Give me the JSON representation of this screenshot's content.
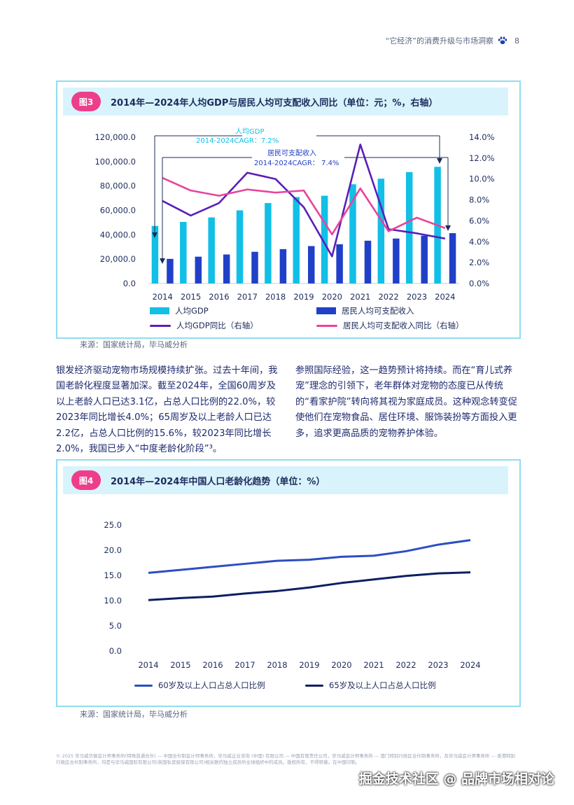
{
  "header": {
    "title": "“它经济”的消费升级与市场洞察",
    "page": "8",
    "colors": {
      "accent": "#1e3fb0",
      "pink": "#ee3e8a",
      "cyan": "#12bfe6"
    }
  },
  "figure3": {
    "tag": "图3",
    "title": "2014年—2024年人均GDP与居民人均可支配收入同比（单位：元；%，右轴）",
    "source": "来源：国家统计局，毕马威分析",
    "legend": {
      "gdp": "人均GDP",
      "income": "居民人均可支配收入",
      "gdp_yoy": "人均GDP同比（右轴）",
      "income_yoy": "居民人均可支配收入同比（右轴）"
    },
    "annotation_gdp": [
      "人均GDP",
      "2014-2024CAGR：7.2%"
    ],
    "annotation_income": [
      "居民可支配收入",
      "2014-2024CAGR：  7.4%"
    ]
  },
  "body": {
    "left": "银发经济驱动宠物市场规模持续扩张。过去十年间，我国老龄化程度显著加深。截至2024年，全国60周岁及以上老龄人口已达3.1亿，占总人口比例的22.0%，较2023年同比增长4.0%；65周岁及以上老龄人口已达2.2亿，占总人口比例的15.6%，较2023年同比增长2.0%，我国已步入“中度老龄化阶段”³。",
    "right": "参照国际经验，这一趋势预计将持续。而在“育儿式养宠”理念的引领下，老年群体对宠物的态度已从传统的“看家护院”转向将其视为家庭成员。这种观念转变促使他们在宠物食品、居住环境、服饰装扮等方面投入更多，追求更高品质的宠物养护体验。"
  },
  "figure4": {
    "tag": "图4",
    "title": "2014年—2024年中国人口老龄化趋势（单位：%）",
    "source": "来源：国家统计局，毕马威分析",
    "legend": {
      "s60": "60岁及以上人口占总人口比例",
      "s65": "65岁及以上人口占总人口比例"
    }
  },
  "chart_data": [
    {
      "type": "bar",
      "title": "2014年—2024年人均GDP与居民人均可支配收入同比（单位：元；%，右轴）",
      "categories": [
        "2014",
        "2015",
        "2016",
        "2017",
        "2018",
        "2019",
        "2020",
        "2021",
        "2022",
        "2023",
        "2024"
      ],
      "ylim": [
        0,
        120000
      ],
      "yticks": [
        "0.0",
        "20,000.0",
        "40,000.0",
        "60,000.0",
        "80,000.0",
        "100,000.0",
        "120,000.0"
      ],
      "y2lim": [
        0,
        14
      ],
      "y2ticks": [
        "0.0%",
        "2.0%",
        "4.0%",
        "6.0%",
        "8.0%",
        "10.0%",
        "12.0%",
        "14.0%"
      ],
      "series": [
        {
          "name": "人均GDP",
          "kind": "bar",
          "axis": "left",
          "color": "#12bfe6",
          "values": [
            47200,
            50500,
            54200,
            60000,
            66000,
            70900,
            72000,
            81400,
            86000,
            91400,
            95700
          ]
        },
        {
          "name": "居民人均可支配收入",
          "kind": "bar",
          "axis": "left",
          "color": "#2140c8",
          "values": [
            20200,
            22000,
            23800,
            26000,
            28200,
            30700,
            32200,
            35100,
            36900,
            39200,
            41300
          ]
        },
        {
          "name": "人均GDP同比（右轴）",
          "kind": "line",
          "axis": "right",
          "color": "#5a1fb8",
          "values": [
            7.9,
            6.5,
            7.7,
            10.6,
            10.0,
            7.3,
            2.6,
            13.3,
            5.2,
            4.8,
            4.3
          ]
        },
        {
          "name": "居民人均可支配收入同比（右轴）",
          "kind": "line",
          "axis": "right",
          "color": "#e8449a",
          "values": [
            10.1,
            8.9,
            8.4,
            9.0,
            8.7,
            8.9,
            4.7,
            9.1,
            5.0,
            6.3,
            5.3
          ]
        }
      ],
      "annotations": [
        "人均GDP 2014-2024CAGR：7.2%",
        "居民可支配收入 2014-2024CAGR：7.4%"
      ]
    },
    {
      "type": "line",
      "title": "2014年—2024年中国人口老龄化趋势（单位：%）",
      "categories": [
        "2014",
        "2015",
        "2016",
        "2017",
        "2018",
        "2019",
        "2020",
        "2021",
        "2022",
        "2023",
        "2024"
      ],
      "ylim": [
        0,
        25
      ],
      "yticks": [
        "0.0",
        "5.0",
        "10.0",
        "15.0",
        "20.0",
        "25.0"
      ],
      "series": [
        {
          "name": "60岁及以上人口占总人口比例",
          "color": "#2c4ec0",
          "values": [
            15.5,
            16.1,
            16.7,
            17.3,
            17.9,
            18.1,
            18.7,
            18.9,
            19.8,
            21.1,
            22.0
          ]
        },
        {
          "name": "65岁及以上人口占总人口比例",
          "color": "#0c1f63",
          "values": [
            10.1,
            10.5,
            10.8,
            11.4,
            11.9,
            12.6,
            13.5,
            14.2,
            14.9,
            15.4,
            15.6
          ]
        }
      ]
    }
  ],
  "footer": {
    "legal": "© 2025 毕马威华振会计师事务所(特殊普通合伙) — 中国合伙制会计师事务所，毕马威企业咨询 (中国) 有限公司 — 中国有限责任公司，毕马威会计师事务所 — 澳门特别行政区合伙制事务所，及毕马威会计师事务所 — 香港特别行政区合伙制事务所，均是与毕马威国际有限公司(英国私营担保有限公司)相关联的独立成员所全球组织中的成员。版权所有，不得转载。在中国印制。",
    "watermark": "掘金技术社区 @ 品牌市场相对论"
  }
}
